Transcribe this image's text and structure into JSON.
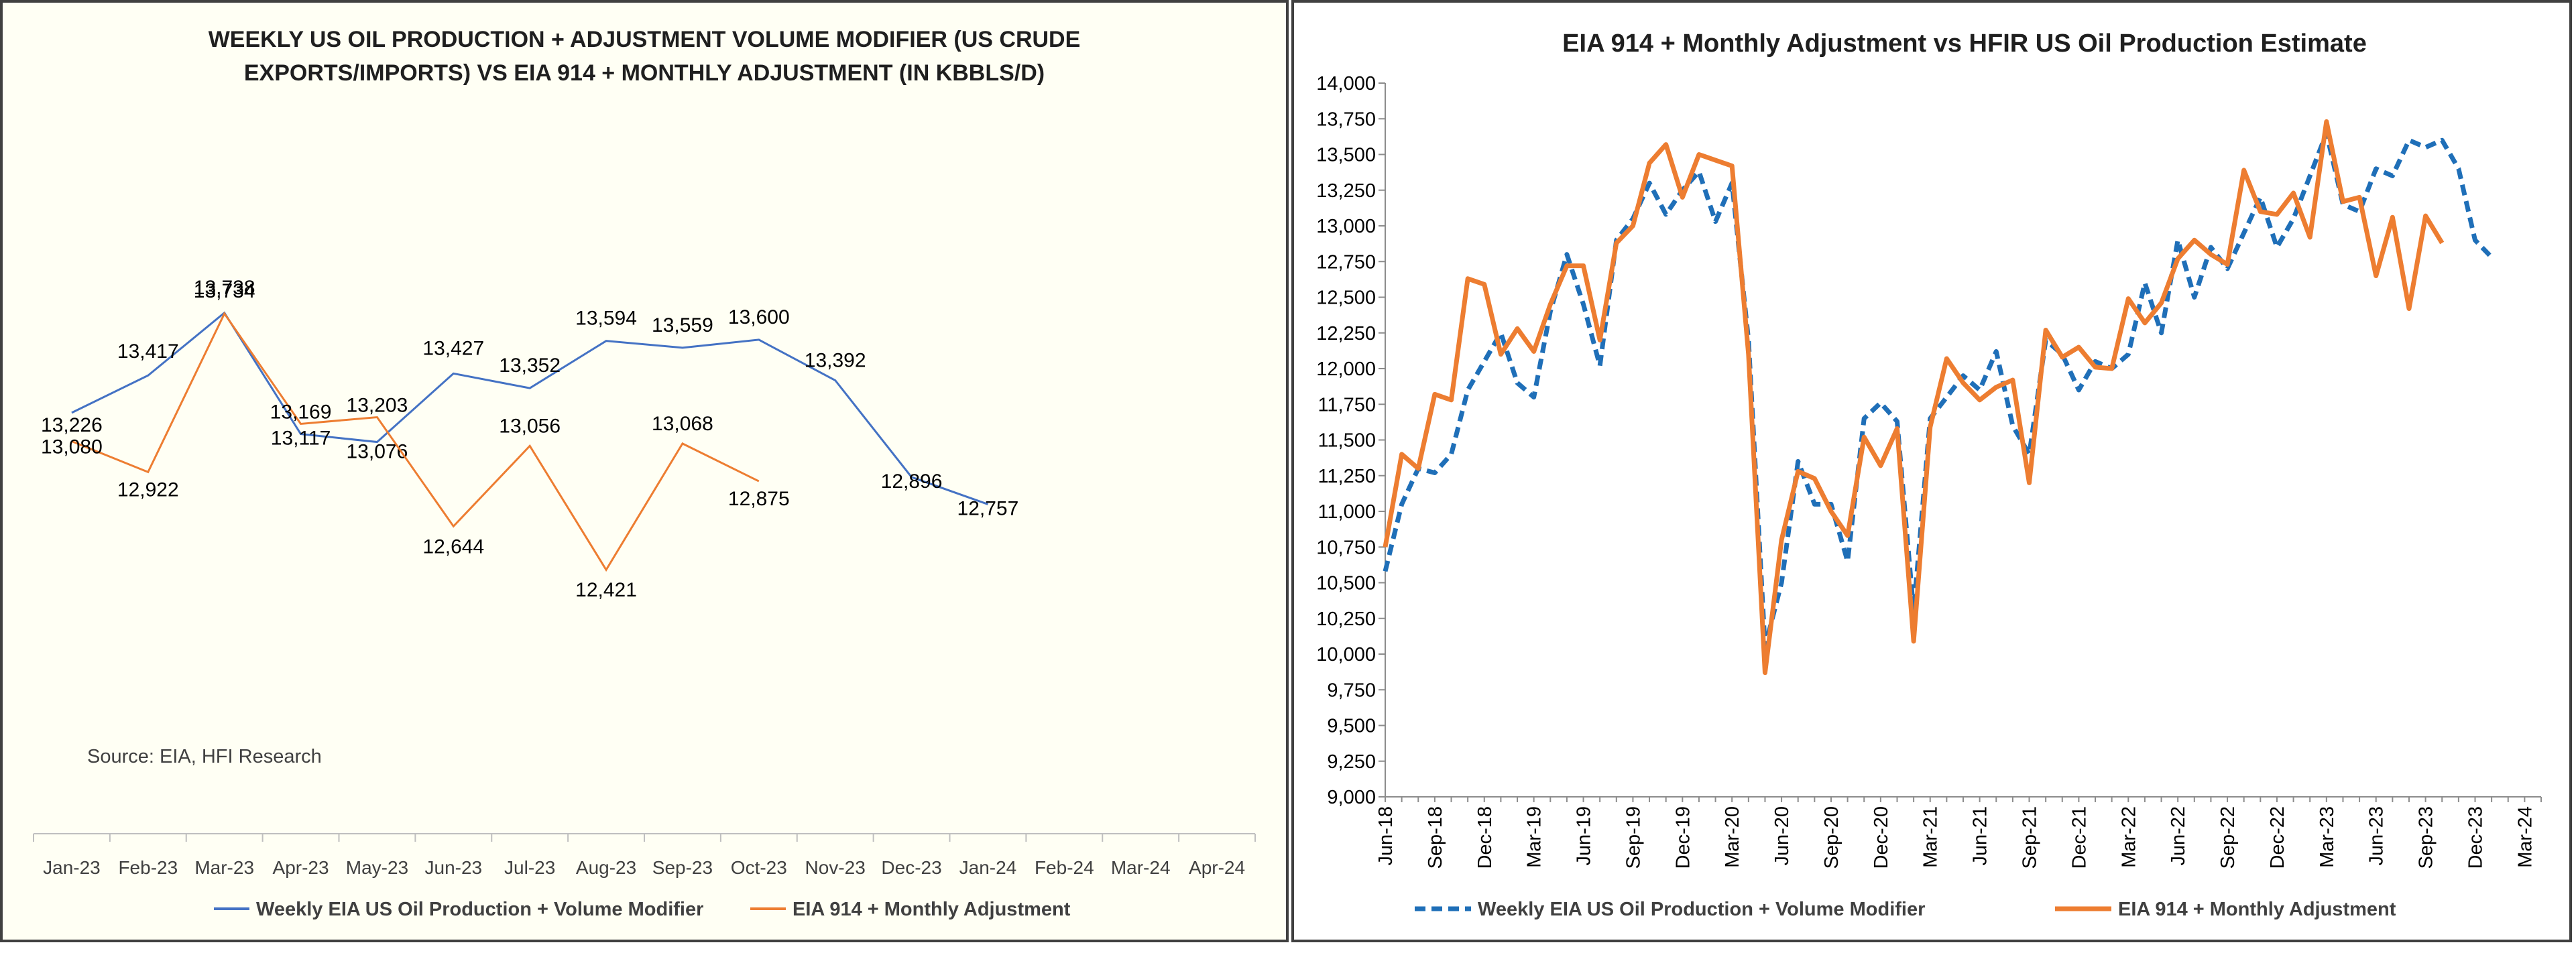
{
  "chart_data": [
    {
      "type": "line",
      "title": "WEEKLY US OIL PRODUCTION + ADJUSTMENT VOLUME MODIFIER (US CRUDE EXPORTS/IMPORTS) VS EIA 914 + MONTHLY ADJUSTMENT (IN KBBLS/D)",
      "title_lines": [
        "WEEKLY US OIL PRODUCTION + ADJUSTMENT VOLUME MODIFIER (US CRUDE",
        "EXPORTS/IMPORTS) VS EIA 914 + MONTHLY ADJUSTMENT (IN KBBLS/D)"
      ],
      "categories": [
        "Jan-23",
        "Feb-23",
        "Mar-23",
        "Apr-23",
        "May-23",
        "Jun-23",
        "Jul-23",
        "Aug-23",
        "Sep-23",
        "Oct-23",
        "Nov-23",
        "Dec-23",
        "Jan-24",
        "Feb-24",
        "Mar-24",
        "Apr-24"
      ],
      "series": [
        {
          "name": "Weekly EIA US Oil Production + Volume Modifier",
          "color": "#4472c4",
          "values": [
            13226,
            13417,
            13738,
            13117,
            13076,
            13427,
            13352,
            13594,
            13559,
            13600,
            13392,
            12896,
            12757,
            null,
            null,
            null
          ]
        },
        {
          "name": "EIA 914 + Monthly Adjustment",
          "color": "#ed7d31",
          "values": [
            13080,
            12922,
            13734,
            13169,
            13203,
            12644,
            13056,
            12421,
            13068,
            12875,
            null,
            null,
            null,
            null,
            null,
            null
          ]
        }
      ],
      "data_labels": [
        [
          "13,226",
          "13,417",
          "13,738",
          "13,117",
          "13,076",
          "13,427",
          "13,352",
          "13,594",
          "13,559",
          "13,600",
          "13,392",
          "12,896",
          "12,757"
        ],
        [
          "13,080",
          "12,922",
          "13,734",
          "13,169",
          "13,203",
          "12,644",
          "13,056",
          "12,421",
          "13,068",
          "12,875"
        ]
      ],
      "annotation": "Source: EIA, HFI Research",
      "legend_position": "bottom",
      "grid": false
    },
    {
      "type": "line",
      "title": "EIA 914 + Monthly Adjustment vs HFIR US Oil Production Estimate",
      "x_tick_labels": [
        "Jun-18",
        "Sep-18",
        "Dec-18",
        "Mar-19",
        "Jun-19",
        "Sep-19",
        "Dec-19",
        "Mar-20",
        "Jun-20",
        "Sep-20",
        "Dec-20",
        "Mar-21",
        "Jun-21",
        "Sep-21",
        "Dec-21",
        "Mar-22",
        "Jun-22",
        "Sep-22",
        "Dec-22",
        "Mar-23",
        "Jun-23",
        "Sep-23",
        "Dec-23",
        "Mar-24"
      ],
      "y_tick_labels": [
        "9,000",
        "9,250",
        "9,500",
        "9,750",
        "10,000",
        "10,250",
        "10,500",
        "10,750",
        "11,000",
        "11,250",
        "11,500",
        "11,750",
        "12,000",
        "12,250",
        "12,500",
        "12,750",
        "13,000",
        "13,250",
        "13,500",
        "13,750",
        "14,000"
      ],
      "ylim": [
        9000,
        14000
      ],
      "x": [
        "2018-06",
        "2018-07",
        "2018-08",
        "2018-09",
        "2018-10",
        "2018-11",
        "2018-12",
        "2019-01",
        "2019-02",
        "2019-03",
        "2019-04",
        "2019-05",
        "2019-06",
        "2019-07",
        "2019-08",
        "2019-09",
        "2019-10",
        "2019-11",
        "2019-12",
        "2020-01",
        "2020-02",
        "2020-03",
        "2020-04",
        "2020-05",
        "2020-06",
        "2020-07",
        "2020-08",
        "2020-09",
        "2020-10",
        "2020-11",
        "2020-12",
        "2021-01",
        "2021-02",
        "2021-03",
        "2021-04",
        "2021-05",
        "2021-06",
        "2021-07",
        "2021-08",
        "2021-09",
        "2021-10",
        "2021-11",
        "2021-12",
        "2022-01",
        "2022-02",
        "2022-03",
        "2022-04",
        "2022-05",
        "2022-06",
        "2022-07",
        "2022-08",
        "2022-09",
        "2022-10",
        "2022-11",
        "2022-12",
        "2023-01",
        "2023-02",
        "2023-03",
        "2023-04",
        "2023-05",
        "2023-06",
        "2023-07",
        "2023-08",
        "2023-09",
        "2023-10",
        "2023-11",
        "2023-12",
        "2024-01"
      ],
      "series": [
        {
          "name": "Weekly EIA US Oil Production + Volume Modifier",
          "color": "#1f6fb8",
          "dash": true,
          "values": [
            10580,
            11050,
            11300,
            11270,
            11400,
            11850,
            12050,
            12250,
            11900,
            11800,
            12400,
            12800,
            12450,
            12020,
            12900,
            13050,
            13300,
            13080,
            13250,
            13380,
            13030,
            13300,
            12200,
            10050,
            10500,
            11350,
            11050,
            11050,
            10650,
            11650,
            11760,
            11630,
            10300,
            11650,
            11800,
            11950,
            11850,
            12120,
            11600,
            11400,
            12200,
            12100,
            11850,
            12050,
            12000,
            12100,
            12600,
            12250,
            12900,
            12500,
            12850,
            12700,
            12950,
            13200,
            12850,
            13050,
            13350,
            13650,
            13150,
            13100,
            13400,
            13350,
            13600,
            13550,
            13600,
            13400,
            12900,
            12780
          ]
        },
        {
          "name": "EIA 914 + Monthly Adjustment",
          "color": "#ed7d31",
          "dash": false,
          "values": [
            10750,
            11400,
            11300,
            11820,
            11780,
            12630,
            12590,
            12100,
            12280,
            12120,
            12450,
            12720,
            12720,
            12200,
            12880,
            13000,
            13440,
            13570,
            13200,
            13500,
            13460,
            13420,
            12100,
            9870,
            10800,
            11280,
            11230,
            11000,
            10830,
            11520,
            11320,
            11580,
            10090,
            11590,
            12070,
            11900,
            11780,
            11870,
            11920,
            11200,
            12270,
            12080,
            12150,
            12010,
            12000,
            12490,
            12320,
            12460,
            12770,
            12900,
            12800,
            12730,
            13390,
            13100,
            13080,
            13230,
            12920,
            13730,
            13170,
            13200,
            12650,
            13060,
            12420,
            13070,
            12880,
            null,
            null,
            null
          ]
        }
      ],
      "legend_position": "bottom",
      "grid": false
    }
  ]
}
